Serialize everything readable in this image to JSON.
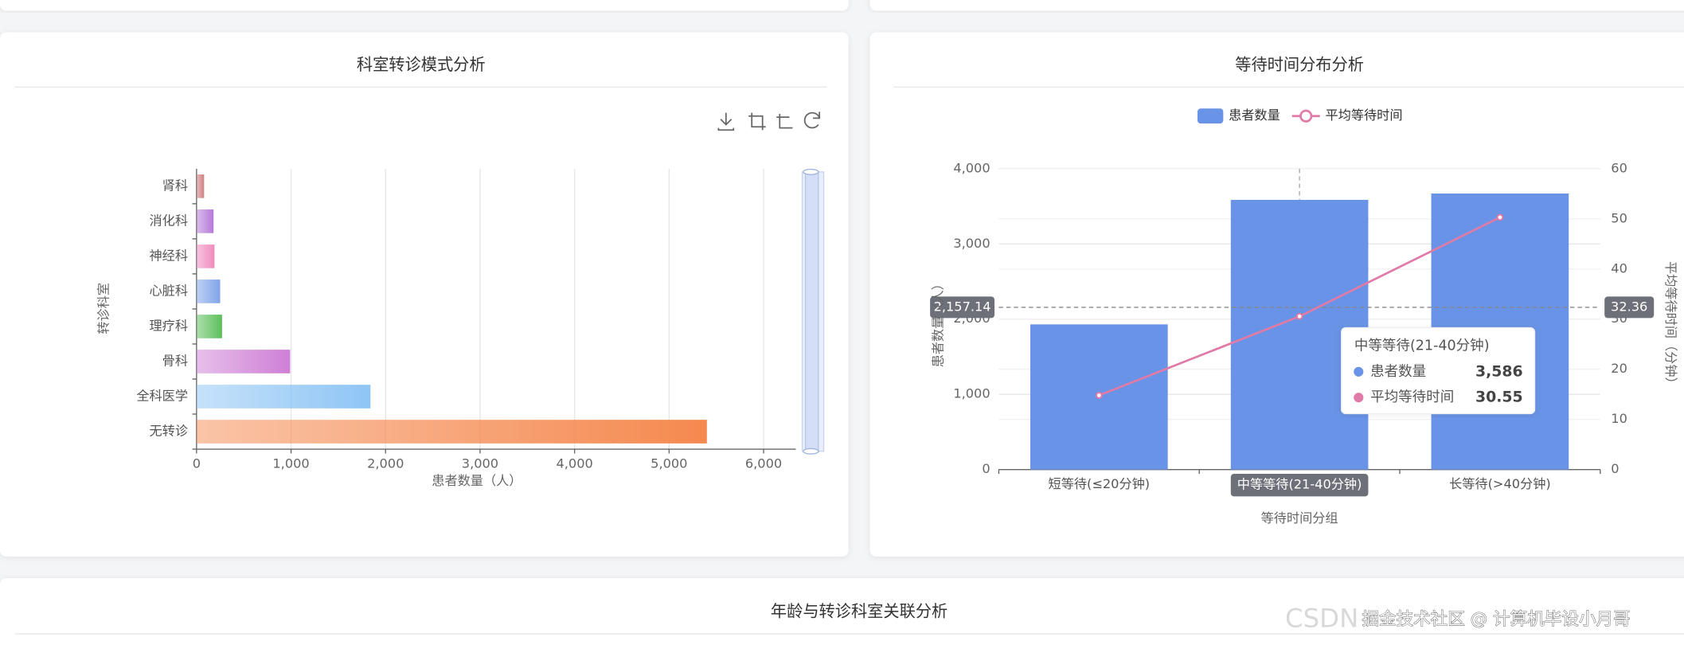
{
  "chart_data": [
    {
      "type": "hbar",
      "title": "科室转诊模式分析",
      "y_label": "转诊科室",
      "x_label": "患者数量（人）",
      "categories": [
        "无转诊",
        "全科医学",
        "骨科",
        "理疗科",
        "心脏科",
        "神经科",
        "消化科",
        "肾科"
      ],
      "values": [
        5400,
        1840,
        990,
        270,
        250,
        190,
        180,
        80
      ],
      "colors": [
        "#f5894f",
        "#8ec5f5",
        "#cf7fd6",
        "#5cbf5c",
        "#7fa3e8",
        "#f08bbd",
        "#b57ad8",
        "#d08080"
      ],
      "xlim": [
        0,
        6000
      ],
      "xticks": [
        0,
        {
          "value": 1000,
          "label": "1,000"
        },
        {
          "value": 2000,
          "label": "2,000"
        },
        {
          "value": 3000,
          "label": "3,000"
        },
        {
          "value": 4000,
          "label": "4,000"
        },
        {
          "value": 5000,
          "label": "5,000"
        },
        {
          "value": 6000,
          "label": "6,000"
        }
      ],
      "grid": true
    },
    {
      "type": "bar-line",
      "title": "等待时间分布分析",
      "x_label": "等待时间分组",
      "y_label": "患者数量（人）",
      "y2_label": "平均等待时间（分钟）",
      "categories": [
        "短等待(≤20分钟)",
        "中等等待(21-40分钟)",
        "长等待(>40分钟)"
      ],
      "series": [
        {
          "name": "患者数量",
          "type": "bar",
          "color": "#6993e6",
          "values": [
            1930,
            3586,
            3670
          ]
        },
        {
          "name": "平均等待时间",
          "type": "line",
          "axis": "y2",
          "color": "#e07aa6",
          "values": [
            14.8,
            30.55,
            50.3
          ]
        }
      ],
      "ylim": [
        0,
        4000
      ],
      "yticks": [
        0,
        {
          "value": 1000,
          "label": "1,000"
        },
        {
          "value": 2000,
          "label": "2,000"
        },
        {
          "value": 3000,
          "label": "3,000"
        },
        {
          "value": 4000,
          "label": "4,000"
        }
      ],
      "y2lim": [
        0,
        60
      ],
      "y2ticks": [
        0,
        10,
        20,
        30,
        40,
        50,
        60
      ],
      "grid": true,
      "axis_pointer": {
        "category": "中等等待(21-40分钟)",
        "y": {
          "value": 2157.14,
          "label": "2,157.14"
        },
        "y2": 32.36
      },
      "tooltip": {
        "title": "中等等待(21-40分钟)",
        "rows": [
          {
            "name": "患者数量",
            "value": "3,586"
          },
          {
            "name": "平均等待时间",
            "value": "30.55"
          }
        ]
      }
    }
  ],
  "section_title": "年龄与转诊科室关联分析",
  "watermark": {
    "faint": "CSDN",
    "text": "掘金技术社区 @ 计算机毕设小月哥"
  }
}
